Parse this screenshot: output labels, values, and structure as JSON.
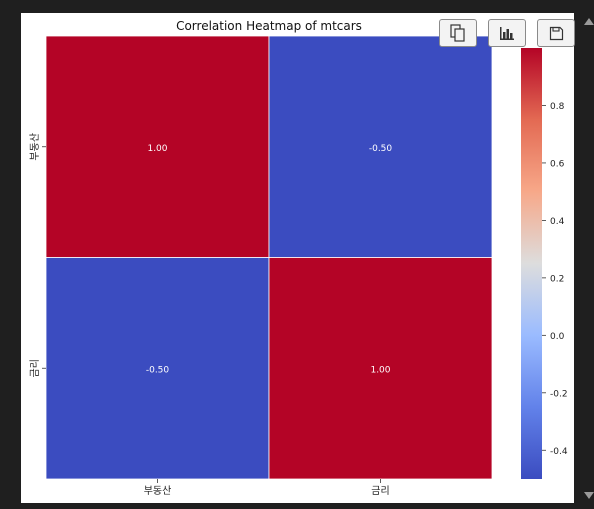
{
  "toolbar": {
    "copy_icon": "copy-icon",
    "chart_icon": "bar-chart-icon",
    "save_icon": "save-icon"
  },
  "chart_data": {
    "type": "heatmap",
    "title": "Correlation Heatmap of mtcars",
    "x_categories": [
      "부동산",
      "금리"
    ],
    "y_categories": [
      "부동산",
      "금리"
    ],
    "values": [
      [
        1.0,
        -0.5
      ],
      [
        -0.5,
        1.0
      ]
    ],
    "annotations": [
      [
        "1.00",
        "-0.50"
      ],
      [
        "-0.50",
        "1.00"
      ]
    ],
    "colormap": "coolwarm",
    "colorbar": {
      "range": [
        -0.5,
        1.0
      ],
      "ticks": [
        -0.4,
        -0.2,
        0.0,
        0.2,
        0.4,
        0.6,
        0.8
      ],
      "tick_labels": [
        "-0.4",
        "-0.2",
        "0.0",
        "0.2",
        "0.4",
        "0.6",
        "0.8"
      ]
    },
    "colors": {
      "low": "#3b4cc0",
      "mid": "#dddddd",
      "high": "#b40426"
    }
  }
}
